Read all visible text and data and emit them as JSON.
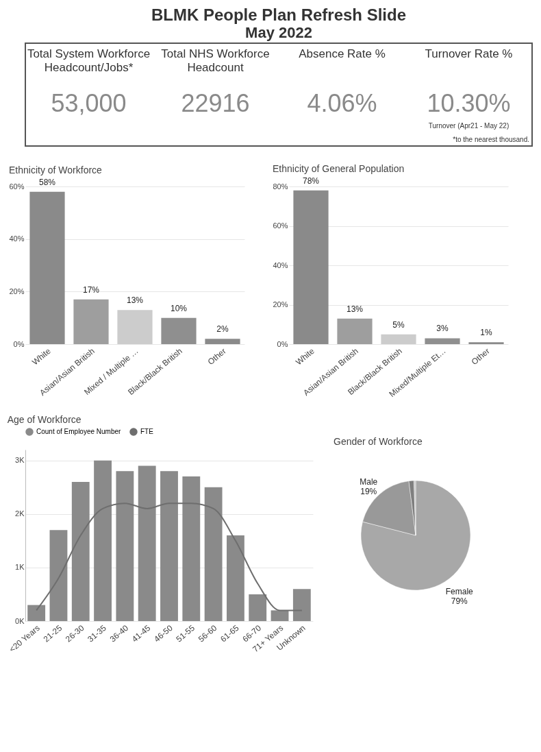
{
  "chart_data": [
    {
      "type": "other",
      "title": "BLMK People Plan Refresh Slide",
      "subtitle": "May 2022",
      "annotations": [
        "Total System Workforce Headcount/Jobs*",
        "53,000",
        "Total NHS Workforce Headcount",
        "22916",
        "Absence Rate %",
        "4.06%",
        "Turnover Rate %",
        "10.30%",
        "Turnover (Apr21 - May 22)",
        "*to the nearest thousand."
      ]
    },
    {
      "type": "bar",
      "title": "Ethnicity of Workforce",
      "categories": [
        "White",
        "Asian/Asian British",
        "Mixed / Multiple …",
        "Black/Black British",
        "Other"
      ],
      "values": [
        58,
        17,
        13,
        10,
        2
      ],
      "colors": [
        "#8a8a8a",
        "#9e9e9e",
        "#cccccc",
        "#8f8f8f",
        "#8a8a8a"
      ],
      "value_labels": [
        "58%",
        "17%",
        "13%",
        "10%",
        "2%"
      ],
      "ylim": [
        0,
        60
      ],
      "yticks": [
        {
          "value": 0,
          "label": "0%"
        },
        {
          "value": 20,
          "label": "20%"
        },
        {
          "value": 40,
          "label": "40%"
        },
        {
          "value": 60,
          "label": "60%"
        }
      ],
      "grid": "y"
    },
    {
      "type": "bar",
      "title": "Ethnicity of General Population",
      "categories": [
        "White",
        "Asian/Asian British",
        "Black/Black British",
        "Mixed/Multiple Et…",
        "Other"
      ],
      "values": [
        78,
        13,
        5,
        3,
        1
      ],
      "colors": [
        "#8a8a8a",
        "#9e9e9e",
        "#cccccc",
        "#8f8f8f",
        "#8a8a8a"
      ],
      "value_labels": [
        "78%",
        "13%",
        "5%",
        "3%",
        "1%"
      ],
      "ylim": [
        0,
        80
      ],
      "yticks": [
        {
          "value": 0,
          "label": "0%"
        },
        {
          "value": 20,
          "label": "20%"
        },
        {
          "value": 40,
          "label": "40%"
        },
        {
          "value": 60,
          "label": "60%"
        },
        {
          "value": 80,
          "label": "80%"
        }
      ],
      "grid": "y"
    },
    {
      "type": "bar",
      "title": "Age of Workforce",
      "categories": [
        "<20 Years",
        "21-25",
        "26-30",
        "31-35",
        "36-40",
        "41-45",
        "46-50",
        "51-55",
        "56-60",
        "61-65",
        "66-70",
        "71+ Years",
        "Unknown"
      ],
      "series": [
        {
          "name": "Count of Employee Number",
          "type": "bar",
          "color": "#8a8a8a",
          "values": [
            0.3,
            1.7,
            2.6,
            3.0,
            2.8,
            2.9,
            2.8,
            2.7,
            2.5,
            1.6,
            0.5,
            0.2,
            0.6
          ]
        },
        {
          "name": "FTE",
          "type": "line",
          "color": "#6e6e6e",
          "values": [
            0.2,
            0.8,
            1.6,
            2.1,
            2.2,
            2.1,
            2.2,
            2.2,
            2.1,
            1.5,
            0.7,
            0.2,
            0.2
          ]
        }
      ],
      "ylim": [
        0,
        3.2
      ],
      "yticks": [
        {
          "value": 0,
          "label": "0K"
        },
        {
          "value": 1,
          "label": "1K"
        },
        {
          "value": 2,
          "label": "2K"
        },
        {
          "value": 3,
          "label": "3K"
        }
      ],
      "grid": "y",
      "legend": "top left",
      "marker": "none"
    },
    {
      "type": "pie",
      "title": "Gender of Workforce",
      "categories": [
        "Female",
        "Male",
        null,
        null
      ],
      "values": [
        79,
        19,
        1.5,
        0.5
      ],
      "colors": [
        "#a8a8a8",
        "#999999",
        "#7f7f7f",
        "#c4c4c4"
      ],
      "value_labels": [
        "79%",
        "19%",
        null,
        null
      ]
    }
  ]
}
